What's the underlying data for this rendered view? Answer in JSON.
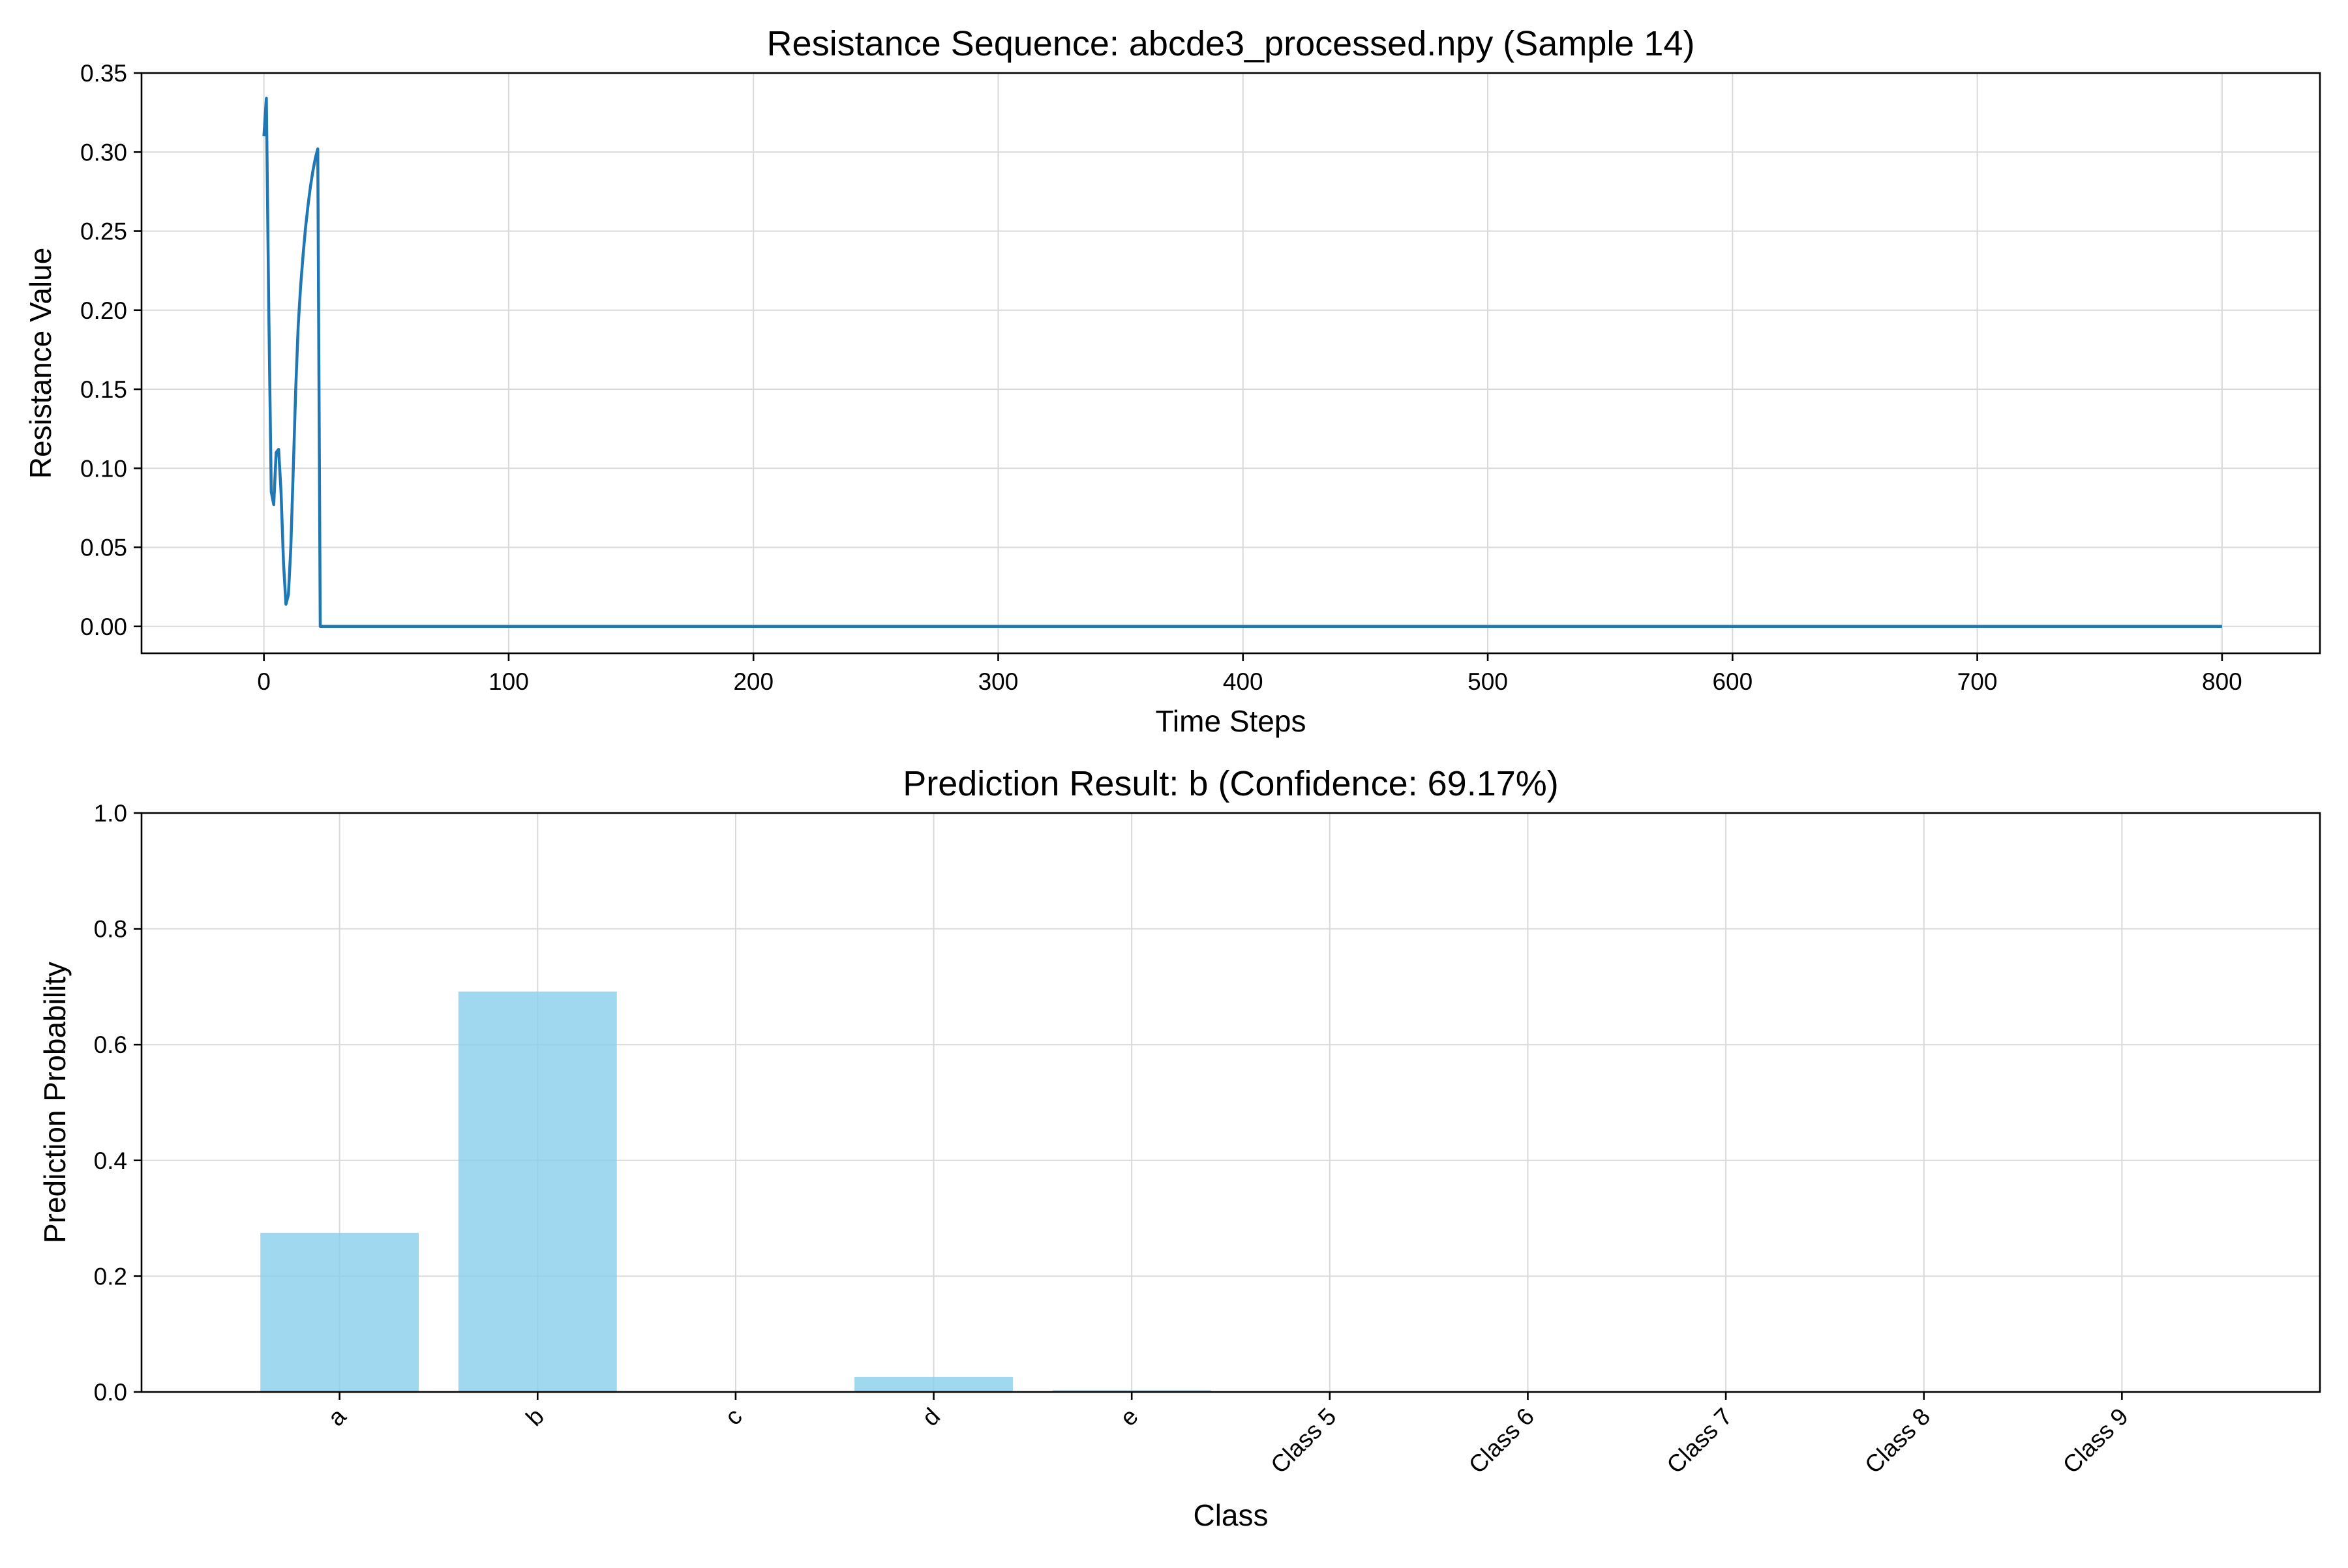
{
  "chart_data": [
    {
      "type": "line",
      "title": "Resistance Sequence: abcde3_processed.npy (Sample 14)",
      "xlabel": "Time Steps",
      "ylabel": "Resistance Value",
      "xlim": [
        -50,
        840
      ],
      "ylim": [
        -0.017,
        0.35
      ],
      "xticks": [
        0,
        100,
        200,
        300,
        400,
        500,
        600,
        700,
        800
      ],
      "xtick_labels": [
        "0",
        "100",
        "200",
        "300",
        "400",
        "500",
        "600",
        "700",
        "800"
      ],
      "yticks": [
        0.0,
        0.05,
        0.1,
        0.15,
        0.2,
        0.25,
        0.3,
        0.35
      ],
      "ytick_labels": [
        "0.00",
        "0.05",
        "0.10",
        "0.15",
        "0.20",
        "0.25",
        "0.30",
        "0.35"
      ],
      "grid": true,
      "color": "#1f77b4",
      "series": [
        {
          "x": [
            0,
            1,
            2,
            3,
            4,
            5,
            6,
            7,
            8,
            9,
            10,
            11,
            12,
            13,
            14,
            15,
            16,
            17,
            18,
            19,
            20,
            21,
            22,
            23,
            24,
            25,
            800
          ],
          "y": [
            0.31,
            0.334,
            0.2,
            0.085,
            0.077,
            0.11,
            0.112,
            0.085,
            0.04,
            0.014,
            0.02,
            0.05,
            0.1,
            0.15,
            0.19,
            0.215,
            0.235,
            0.252,
            0.266,
            0.278,
            0.288,
            0.296,
            0.302,
            0.0,
            0.0,
            0.0,
            0.0
          ]
        }
      ]
    },
    {
      "type": "bar",
      "title": "Prediction Result: b (Confidence: 69.17%)",
      "xlabel": "Class",
      "ylabel": "Prediction Probability",
      "ylim": [
        0,
        1.0
      ],
      "yticks": [
        0.0,
        0.2,
        0.4,
        0.6,
        0.8,
        1.0
      ],
      "ytick_labels": [
        "0.0",
        "0.2",
        "0.4",
        "0.6",
        "0.8",
        "1.0"
      ],
      "categories": [
        "a",
        "b",
        "c",
        "d",
        "e",
        "Class 5",
        "Class 6",
        "Class 7",
        "Class 8",
        "Class 9"
      ],
      "values": [
        0.275,
        0.6917,
        0.001,
        0.026,
        0.003,
        0.0,
        0.0,
        0.0,
        0.0,
        0.0
      ],
      "grid": true,
      "color": "#87ceeb"
    }
  ]
}
